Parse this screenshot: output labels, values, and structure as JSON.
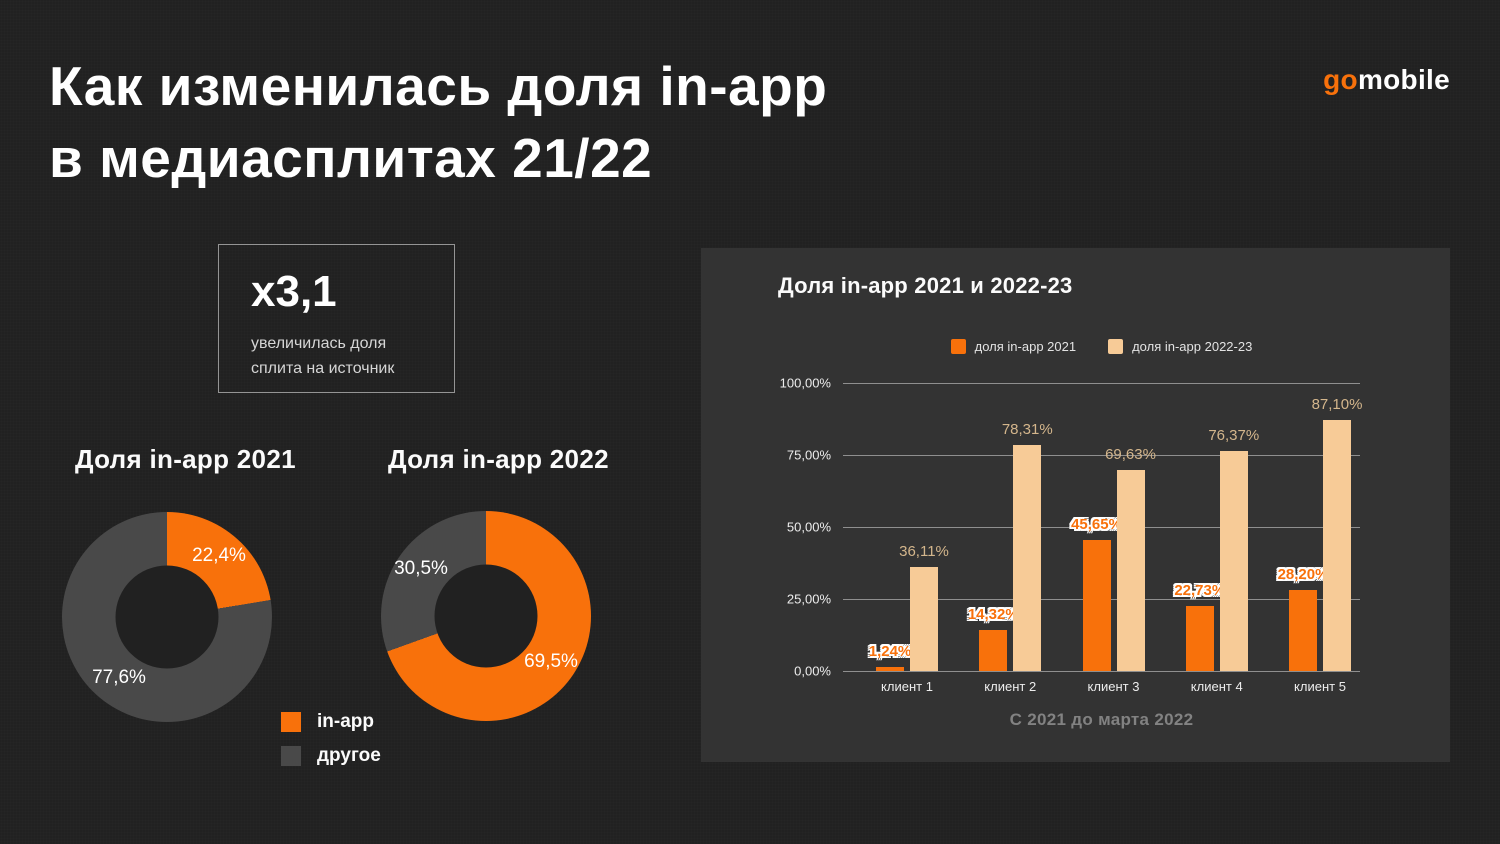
{
  "slide": {
    "title_line1": "Как изменилась доля in-app",
    "title_line2": "в медиасплитах 21/22"
  },
  "logo": {
    "go": "go",
    "mobile": "mobile"
  },
  "stat_box": {
    "value": "x3,1",
    "caption_line1": "увеличилась доля",
    "caption_line2": "сплита на источник"
  },
  "donut_legend": [
    {
      "label": "in-app",
      "color": "#f8710b"
    },
    {
      "label": "другое",
      "color": "#494949"
    }
  ],
  "colors": {
    "background": "#212121",
    "panel": "#333333",
    "accent_orange": "#f8710b",
    "peach": "#f7cb97",
    "donut_gray": "#494949",
    "gridline": "#8f8f8f"
  },
  "chart_data": [
    {
      "type": "pie",
      "title": "Доля in-app 2021",
      "labels": [
        "in-app",
        "другое"
      ],
      "values": [
        22.4,
        77.6
      ],
      "display_labels": [
        "22,4%",
        "77,6%"
      ]
    },
    {
      "type": "pie",
      "title": "Доля in-app 2022",
      "labels": [
        "in-app",
        "другое"
      ],
      "values": [
        69.5,
        30.5
      ],
      "display_labels": [
        "69,5%",
        "30,5%"
      ]
    },
    {
      "type": "bar",
      "title": "Доля in-app 2021 и 2022-23",
      "categories": [
        "клиент 1",
        "клиент 2",
        "клиент 3",
        "клиент 4",
        "клиент 5"
      ],
      "series": [
        {
          "name": "доля in-app 2021",
          "color": "#f8710b",
          "values": [
            1.24,
            14.32,
            45.65,
            22.73,
            28.2
          ],
          "labels": [
            "1,24%",
            "14,32%",
            "45,65%",
            "22,73%",
            "28,20%"
          ]
        },
        {
          "name": "доля in-app 2022-23",
          "color": "#f7cb97",
          "values": [
            36.11,
            78.31,
            69.63,
            76.37,
            87.1
          ],
          "labels": [
            "36,11%",
            "78,31%",
            "69,63%",
            "76,37%",
            "87,10%"
          ]
        }
      ],
      "y_ticks": [
        "100,00%",
        "75,00%",
        "50,00%",
        "25,00%",
        "0,00%"
      ],
      "ylim": [
        0,
        100
      ],
      "grid": true,
      "legend_position": "top",
      "caption": "С 2021 до марта 2022"
    }
  ]
}
